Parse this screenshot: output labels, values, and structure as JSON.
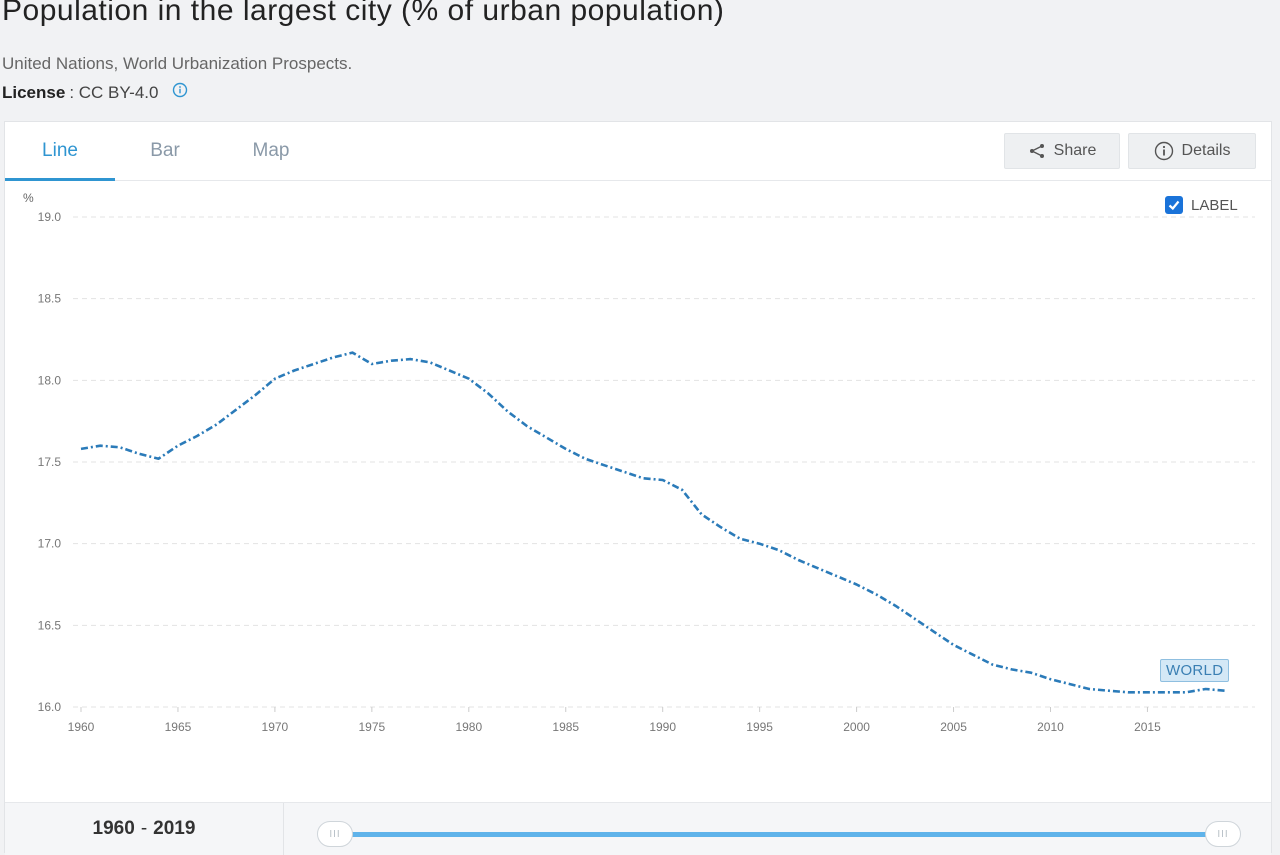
{
  "page": {
    "title": "Population in the largest city (% of urban population)",
    "source": "United Nations, World Urbanization Prospects.",
    "license_label": "License",
    "license_value": ": CC BY-4.0"
  },
  "tabs": [
    {
      "label": "Line",
      "active": true
    },
    {
      "label": "Bar",
      "active": false
    },
    {
      "label": "Map",
      "active": false
    }
  ],
  "buttons": {
    "share": "Share",
    "details": "Details"
  },
  "label_toggle": {
    "text": "LABEL",
    "checked": true
  },
  "range": {
    "start": "1960",
    "separator": "-",
    "end": "2019"
  },
  "colors": {
    "line": "#2b7bb9",
    "accent": "#2f95d1",
    "grid": "#e3e3e3"
  },
  "chart_data": {
    "type": "line",
    "ylabel": "%",
    "ylim": [
      16.0,
      19.0
    ],
    "yticks": [
      "19.0",
      "18.5",
      "18.0",
      "17.5",
      "17.0",
      "16.5",
      "16.0"
    ],
    "xticks": [
      "1960",
      "1965",
      "1970",
      "1975",
      "1980",
      "1985",
      "1990",
      "1995",
      "2000",
      "2005",
      "2010",
      "2015"
    ],
    "xlim": [
      1960,
      2019
    ],
    "grid": true,
    "series": [
      {
        "name": "WORLD",
        "x": [
          1960,
          1961,
          1962,
          1963,
          1964,
          1965,
          1966,
          1967,
          1968,
          1969,
          1970,
          1971,
          1972,
          1973,
          1974,
          1975,
          1976,
          1977,
          1978,
          1979,
          1980,
          1981,
          1982,
          1983,
          1984,
          1985,
          1986,
          1987,
          1988,
          1989,
          1990,
          1991,
          1992,
          1993,
          1994,
          1995,
          1996,
          1997,
          1998,
          1999,
          2000,
          2001,
          2002,
          2003,
          2004,
          2005,
          2006,
          2007,
          2008,
          2009,
          2010,
          2011,
          2012,
          2013,
          2014,
          2015,
          2016,
          2017,
          2018,
          2019
        ],
        "values": [
          17.58,
          17.6,
          17.59,
          17.55,
          17.52,
          17.6,
          17.66,
          17.73,
          17.82,
          17.91,
          18.01,
          18.06,
          18.1,
          18.14,
          18.17,
          18.1,
          18.12,
          18.13,
          18.11,
          18.06,
          18.01,
          17.92,
          17.81,
          17.72,
          17.65,
          17.58,
          17.52,
          17.48,
          17.44,
          17.4,
          17.39,
          17.33,
          17.18,
          17.1,
          17.03,
          17.0,
          16.96,
          16.9,
          16.85,
          16.8,
          16.75,
          16.69,
          16.62,
          16.54,
          16.46,
          16.38,
          16.32,
          16.26,
          16.23,
          16.21,
          16.17,
          16.14,
          16.11,
          16.1,
          16.09,
          16.09,
          16.09,
          16.09,
          16.11,
          16.1
        ]
      }
    ]
  }
}
